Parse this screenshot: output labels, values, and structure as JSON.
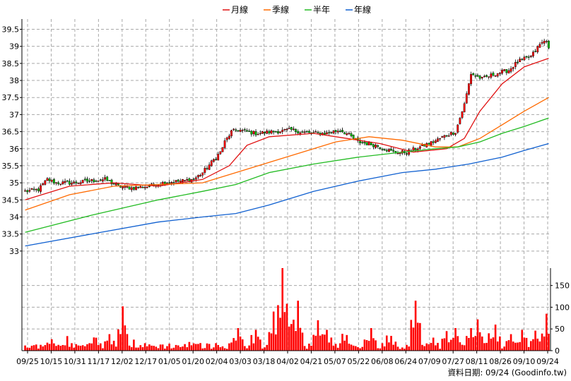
{
  "legend": [
    {
      "label": "月線",
      "color": "#e01010"
    },
    {
      "label": "季線",
      "color": "#ff6a00"
    },
    {
      "label": "半年",
      "color": "#22bb22"
    },
    {
      "label": "年線",
      "color": "#1060d0"
    }
  ],
  "footer_source": "資料日期: 09/24  (Goodinfo.tw)",
  "colors": {
    "up": "#ff0000",
    "down": "#00c000",
    "grid": "#a8a8a8",
    "volume": "#ff0000"
  },
  "chart_data": {
    "type": "candlestick",
    "price_axis": {
      "ticks": [
        33,
        33.5,
        34,
        34.5,
        35,
        35.5,
        36,
        36.5,
        37,
        37.5,
        38,
        38.5,
        39,
        39.5
      ],
      "range": [
        32.5,
        39.8
      ]
    },
    "volume_axis": {
      "ticks": [
        0,
        50,
        100,
        150
      ],
      "range": [
        0,
        190
      ]
    },
    "x_labels": [
      "09/25",
      "10/15",
      "10/31",
      "11/17",
      "12/02",
      "12/17",
      "01/05",
      "01/20",
      "02/04",
      "03/03",
      "03/18",
      "04/02",
      "04/21",
      "05/07",
      "05/22",
      "06/08",
      "06/24",
      "07/09",
      "07/27",
      "08/11",
      "08/26",
      "09/10",
      "09/24"
    ],
    "close_anchors": [
      [
        0,
        34.75
      ],
      [
        6,
        34.8
      ],
      [
        10,
        35.1
      ],
      [
        14,
        35.0
      ],
      [
        22,
        35.0
      ],
      [
        28,
        35.05
      ],
      [
        36,
        35.1
      ],
      [
        42,
        34.9
      ],
      [
        48,
        34.85
      ],
      [
        56,
        34.9
      ],
      [
        62,
        35.0
      ],
      [
        70,
        35.05
      ],
      [
        76,
        35.1
      ],
      [
        80,
        35.3
      ],
      [
        84,
        35.6
      ],
      [
        88,
        35.9
      ],
      [
        90,
        36.2
      ],
      [
        93,
        36.5
      ],
      [
        96,
        36.55
      ],
      [
        104,
        36.45
      ],
      [
        112,
        36.5
      ],
      [
        120,
        36.55
      ],
      [
        128,
        36.45
      ],
      [
        136,
        36.45
      ],
      [
        142,
        36.55
      ],
      [
        146,
        36.4
      ],
      [
        150,
        36.2
      ],
      [
        158,
        36.1
      ],
      [
        166,
        35.9
      ],
      [
        172,
        35.9
      ],
      [
        178,
        36.05
      ],
      [
        184,
        36.2
      ],
      [
        190,
        36.4
      ],
      [
        194,
        36.5
      ],
      [
        198,
        37.3
      ],
      [
        201,
        38.2
      ],
      [
        206,
        38.05
      ],
      [
        212,
        38.2
      ],
      [
        218,
        38.3
      ],
      [
        222,
        38.55
      ],
      [
        228,
        38.7
      ],
      [
        232,
        39.05
      ],
      [
        235,
        39.2
      ],
      [
        236,
        38.9
      ]
    ],
    "series": [
      {
        "name": "月線",
        "points": [
          [
            0,
            34.5
          ],
          [
            20,
            34.9
          ],
          [
            40,
            35.0
          ],
          [
            60,
            34.9
          ],
          [
            80,
            35.1
          ],
          [
            92,
            35.5
          ],
          [
            100,
            36.1
          ],
          [
            110,
            36.35
          ],
          [
            130,
            36.45
          ],
          [
            145,
            36.3
          ],
          [
            160,
            36.15
          ],
          [
            175,
            35.9
          ],
          [
            190,
            36.0
          ],
          [
            198,
            36.3
          ],
          [
            205,
            37.1
          ],
          [
            215,
            37.9
          ],
          [
            225,
            38.4
          ],
          [
            236,
            38.65
          ]
        ]
      },
      {
        "name": "季線",
        "points": [
          [
            0,
            34.2
          ],
          [
            20,
            34.65
          ],
          [
            40,
            34.9
          ],
          [
            60,
            34.95
          ],
          [
            80,
            35.0
          ],
          [
            95,
            35.3
          ],
          [
            110,
            35.6
          ],
          [
            125,
            35.9
          ],
          [
            140,
            36.2
          ],
          [
            155,
            36.35
          ],
          [
            170,
            36.25
          ],
          [
            185,
            36.05
          ],
          [
            195,
            36.05
          ],
          [
            205,
            36.3
          ],
          [
            215,
            36.7
          ],
          [
            225,
            37.1
          ],
          [
            236,
            37.5
          ]
        ]
      },
      {
        "name": "半年",
        "points": [
          [
            0,
            33.55
          ],
          [
            30,
            34.05
          ],
          [
            60,
            34.5
          ],
          [
            80,
            34.75
          ],
          [
            95,
            34.95
          ],
          [
            110,
            35.3
          ],
          [
            130,
            35.55
          ],
          [
            150,
            35.75
          ],
          [
            170,
            35.9
          ],
          [
            185,
            36.0
          ],
          [
            195,
            36.05
          ],
          [
            205,
            36.2
          ],
          [
            215,
            36.45
          ],
          [
            225,
            36.65
          ],
          [
            236,
            36.9
          ]
        ]
      },
      {
        "name": "年線",
        "points": [
          [
            0,
            33.15
          ],
          [
            30,
            33.5
          ],
          [
            60,
            33.85
          ],
          [
            80,
            34.0
          ],
          [
            95,
            34.1
          ],
          [
            110,
            34.35
          ],
          [
            130,
            34.75
          ],
          [
            150,
            35.05
          ],
          [
            170,
            35.3
          ],
          [
            185,
            35.4
          ],
          [
            200,
            35.55
          ],
          [
            215,
            35.75
          ],
          [
            225,
            35.95
          ],
          [
            236,
            36.15
          ]
        ]
      }
    ],
    "volume_peaks": [
      [
        12,
        18
      ],
      [
        38,
        38
      ],
      [
        44,
        102
      ],
      [
        74,
        20
      ],
      [
        96,
        52
      ],
      [
        104,
        48
      ],
      [
        112,
        90
      ],
      [
        116,
        190
      ],
      [
        118,
        108
      ],
      [
        123,
        115
      ],
      [
        132,
        70
      ],
      [
        136,
        48
      ],
      [
        145,
        36
      ],
      [
        156,
        52
      ],
      [
        165,
        34
      ],
      [
        176,
        115
      ],
      [
        184,
        30
      ],
      [
        190,
        45
      ],
      [
        194,
        52
      ],
      [
        201,
        52
      ],
      [
        204,
        72
      ],
      [
        209,
        40
      ],
      [
        212,
        60
      ],
      [
        219,
        38
      ],
      [
        224,
        48
      ],
      [
        230,
        46
      ],
      [
        235,
        85
      ]
    ]
  }
}
